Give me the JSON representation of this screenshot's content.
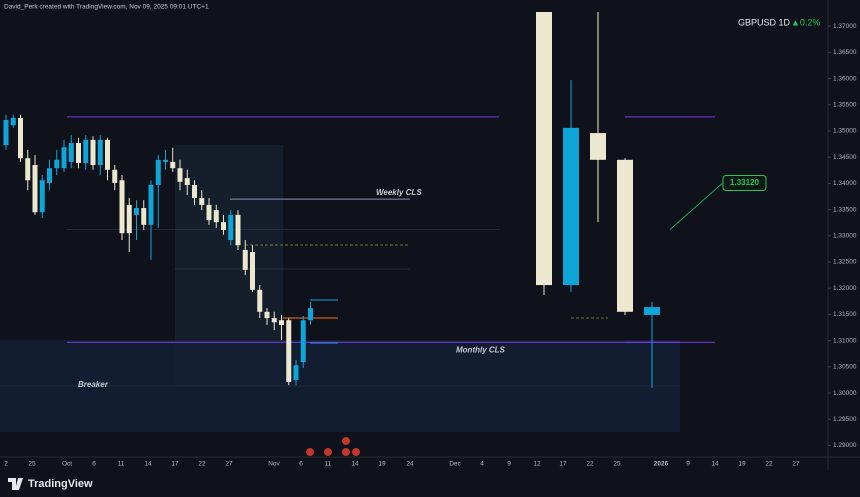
{
  "header": {
    "credit": "David_Perk created with TradingView.com, Nov 09, 2025 09:01 UTC+1",
    "symbol": "GBPUSD 1D",
    "change": "▲0.2%"
  },
  "chart_data": {
    "type": "candlestick",
    "ylim": [
      1.2878,
      1.3727
    ],
    "yticks": [
      {
        "value": 1.29,
        "label": "1.29000"
      },
      {
        "value": 1.295,
        "label": "1.29500"
      },
      {
        "value": 1.3,
        "label": "1.30000"
      },
      {
        "value": 1.305,
        "label": "1.30500"
      },
      {
        "value": 1.31,
        "label": "1.31000"
      },
      {
        "value": 1.315,
        "label": "1.31500"
      },
      {
        "value": 1.32,
        "label": "1.32000"
      },
      {
        "value": 1.325,
        "label": "1.32500"
      },
      {
        "value": 1.33,
        "label": "1.33000"
      },
      {
        "value": 1.335,
        "label": "1.33500"
      },
      {
        "value": 1.34,
        "label": "1.34000"
      },
      {
        "value": 1.345,
        "label": "1.34500"
      },
      {
        "value": 1.35,
        "label": "1.35000"
      },
      {
        "value": 1.355,
        "label": "1.35500"
      },
      {
        "value": 1.36,
        "label": "1.36000"
      },
      {
        "value": 1.365,
        "label": "1.36500"
      },
      {
        "value": 1.37,
        "label": "1.37000"
      }
    ],
    "xtick_labels": [
      "2",
      "25",
      "Oct",
      "6",
      "11",
      "14",
      "17",
      "22",
      "27",
      "Nov",
      "6",
      "11",
      "14",
      "19",
      "24",
      "Dec",
      "4",
      "9",
      "12",
      "17",
      "22",
      "25",
      "2026",
      "9",
      "14",
      "19",
      "22",
      "27"
    ],
    "colors": {
      "up": "#0ea5d8",
      "down": "#ece8cf",
      "level": "#7c3aed",
      "target": "#22c55e"
    },
    "daily": {
      "open": [
        1.3473,
        1.3511,
        1.3525,
        1.3448,
        1.3435,
        1.3345,
        1.3401,
        1.3429,
        1.3429,
        1.3441,
        1.3477,
        1.3439,
        1.3483,
        1.3435,
        1.3483,
        1.3426,
        1.3406,
        1.3359,
        1.334,
        1.3353,
        1.3321,
        1.3397,
        1.3441,
        1.3441,
        1.3429,
        1.341,
        1.3397,
        1.3372,
        1.3359,
        1.3349,
        1.3326,
        1.3292,
        1.334,
        1.3273,
        1.3269,
        1.3197,
        1.3155,
        1.3143,
        1.3139,
        1.3139,
        1.3025,
        1.3059,
        1.3139
      ],
      "high": [
        1.3531,
        1.3531,
        1.3531,
        1.3464,
        1.3454,
        1.3416,
        1.3445,
        1.3464,
        1.3483,
        1.3492,
        1.3487,
        1.3492,
        1.349,
        1.3492,
        1.3487,
        1.3435,
        1.3416,
        1.3372,
        1.3368,
        1.3368,
        1.3406,
        1.3454,
        1.3464,
        1.3468,
        1.3445,
        1.3426,
        1.3406,
        1.3387,
        1.3372,
        1.3359,
        1.334,
        1.3349,
        1.3349,
        1.3292,
        1.3282,
        1.3206,
        1.3162,
        1.3155,
        1.3149,
        1.3143,
        1.3063,
        1.3147,
        1.3174
      ],
      "low": [
        1.3464,
        1.3506,
        1.3441,
        1.3387,
        1.334,
        1.3334,
        1.3387,
        1.3416,
        1.3422,
        1.3429,
        1.3429,
        1.3426,
        1.3426,
        1.3416,
        1.3406,
        1.3387,
        1.3292,
        1.3269,
        1.3292,
        1.3311,
        1.3254,
        1.3315,
        1.3426,
        1.3422,
        1.3387,
        1.3378,
        1.3359,
        1.3349,
        1.3321,
        1.3315,
        1.3302,
        1.3282,
        1.3273,
        1.3225,
        1.3193,
        1.3143,
        1.313,
        1.312,
        1.3101,
        1.3015,
        1.3015,
        1.3048,
        1.313
      ],
      "close": [
        1.3521,
        1.3525,
        1.3448,
        1.3406,
        1.3345,
        1.3406,
        1.3429,
        1.3445,
        1.3469,
        1.3477,
        1.3439,
        1.3483,
        1.3435,
        1.3483,
        1.3426,
        1.3401,
        1.3305,
        1.3305,
        1.3353,
        1.3321,
        1.3397,
        1.3445,
        1.3445,
        1.3429,
        1.3403,
        1.3397,
        1.3372,
        1.3359,
        1.333,
        1.3326,
        1.3311,
        1.334,
        1.3282,
        1.3235,
        1.3197,
        1.3155,
        1.3143,
        1.3135,
        1.313,
        1.3021,
        1.3053,
        1.3139,
        1.3162
      ]
    },
    "weekly": {
      "open": [
        1.3727,
        1.3206,
        1.3496,
        1.3445,
        1.3149
      ],
      "high": [
        1.3727,
        1.3597,
        1.3727,
        1.3448,
        1.3174
      ],
      "low": [
        1.3187,
        1.3193,
        1.3326,
        1.3149,
        1.301
      ],
      "close": [
        1.3206,
        1.3506,
        1.3445,
        1.3155,
        1.3164
      ]
    },
    "levels": {
      "upper": 1.3527,
      "weekly_cls": 1.337,
      "monthly_cls": 1.3097
    },
    "target": {
      "value": 1.3312,
      "label": "1.33120"
    },
    "annotations": {
      "weekly_cls": "Weekly CLS",
      "monthly_cls": "Monthly CLS",
      "breaker": "Breaker"
    }
  },
  "footer": {
    "brand": "TradingView"
  }
}
